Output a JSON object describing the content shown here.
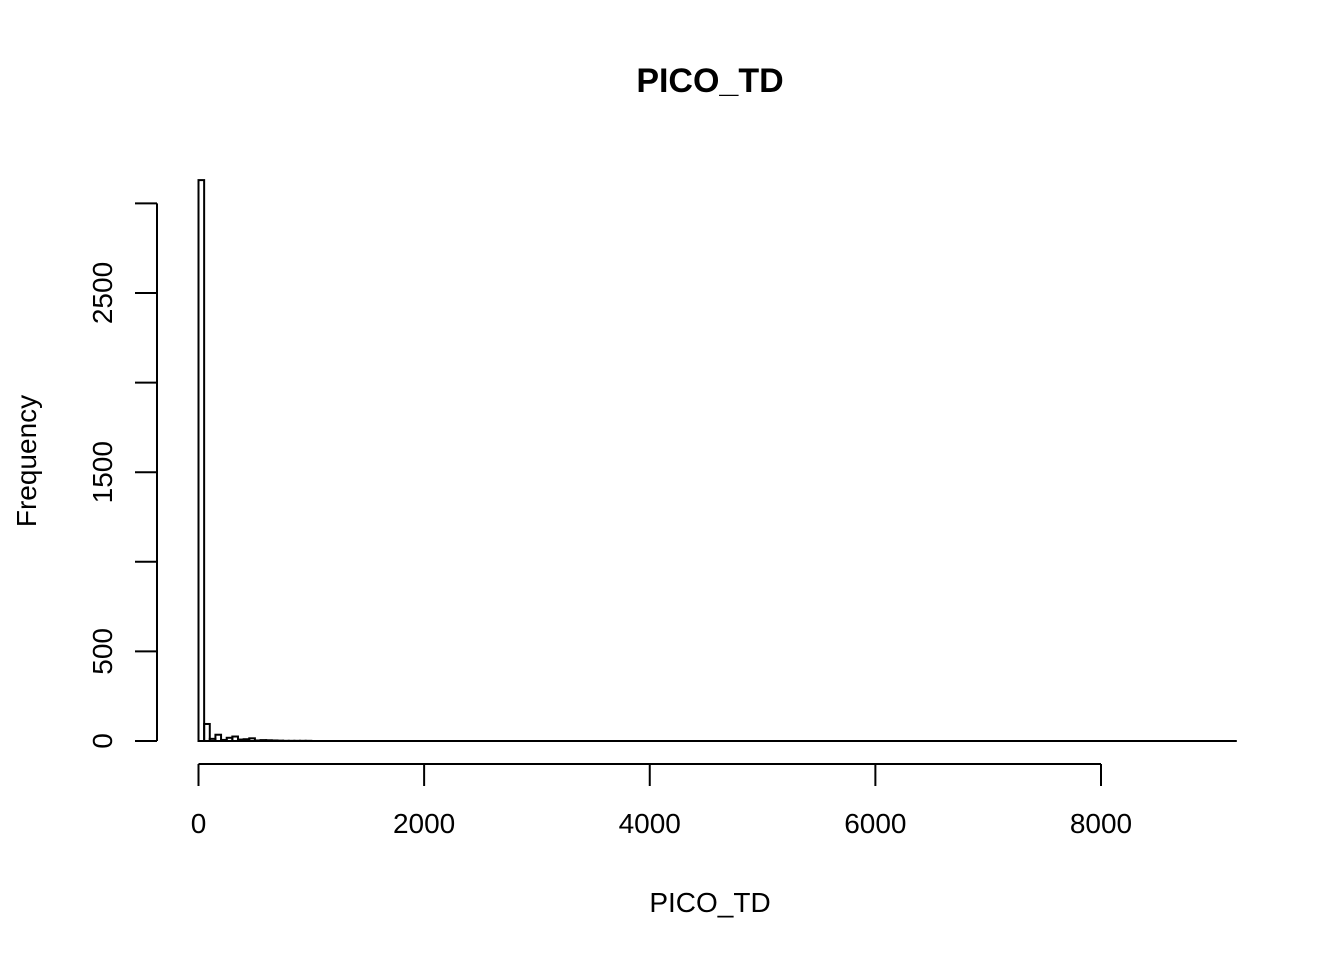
{
  "chart_data": {
    "type": "bar",
    "title": "PICO_TD",
    "xlabel": "PICO_TD",
    "ylabel": "Frequency",
    "xlim": [
      0,
      9000
    ],
    "ylim": [
      0,
      3000
    ],
    "x_ticks": [
      0,
      2000,
      4000,
      6000,
      8000
    ],
    "y_ticks": [
      0,
      500,
      1000,
      1500,
      2000,
      2500,
      3000
    ],
    "y_tick_labels": [
      "0",
      "500",
      "",
      "1500",
      "",
      "2500",
      ""
    ],
    "bin_width": 50,
    "bins": [
      {
        "start": 0,
        "end": 50,
        "count": 3130
      },
      {
        "start": 50,
        "end": 100,
        "count": 95
      },
      {
        "start": 100,
        "end": 150,
        "count": 12
      },
      {
        "start": 150,
        "end": 200,
        "count": 35
      },
      {
        "start": 200,
        "end": 250,
        "count": 6
      },
      {
        "start": 250,
        "end": 300,
        "count": 18
      },
      {
        "start": 300,
        "end": 350,
        "count": 25
      },
      {
        "start": 350,
        "end": 400,
        "count": 8
      },
      {
        "start": 400,
        "end": 450,
        "count": 10
      },
      {
        "start": 450,
        "end": 500,
        "count": 15
      },
      {
        "start": 500,
        "end": 550,
        "count": 3
      },
      {
        "start": 550,
        "end": 600,
        "count": 5
      },
      {
        "start": 600,
        "end": 650,
        "count": 4
      },
      {
        "start": 650,
        "end": 700,
        "count": 3
      },
      {
        "start": 700,
        "end": 750,
        "count": 2
      },
      {
        "start": 750,
        "end": 800,
        "count": 1
      },
      {
        "start": 800,
        "end": 850,
        "count": 1
      },
      {
        "start": 850,
        "end": 900,
        "count": 1
      },
      {
        "start": 900,
        "end": 950,
        "count": 1
      },
      {
        "start": 950,
        "end": 1000,
        "count": 1
      }
    ],
    "grid": false,
    "legend": "none"
  }
}
